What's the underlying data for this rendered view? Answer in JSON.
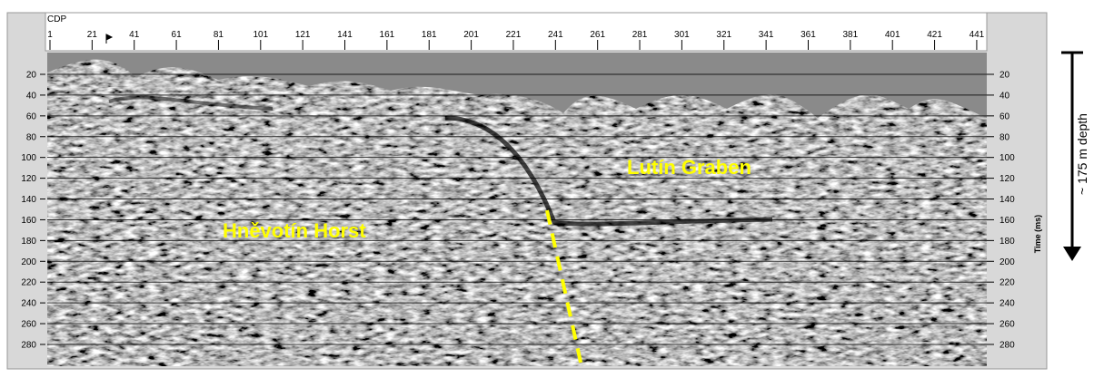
{
  "cdp_axis": {
    "label": "CDP",
    "ticks": [
      "1",
      "21",
      "41",
      "61",
      "81",
      "101",
      "121",
      "141",
      "161",
      "181",
      "201",
      "221",
      "241",
      "261",
      "281",
      "301",
      "321",
      "341",
      "361",
      "381",
      "401",
      "421",
      "441"
    ]
  },
  "time_axis": {
    "label": "Time (ms)",
    "ticks": [
      "20",
      "40",
      "60",
      "80",
      "100",
      "120",
      "140",
      "160",
      "180",
      "200",
      "220",
      "240",
      "260",
      "280"
    ]
  },
  "annotations": {
    "horst": "Hněvotín Horst",
    "graben": "Lutín Graben"
  },
  "depth_label": "~ 175 m depth"
}
